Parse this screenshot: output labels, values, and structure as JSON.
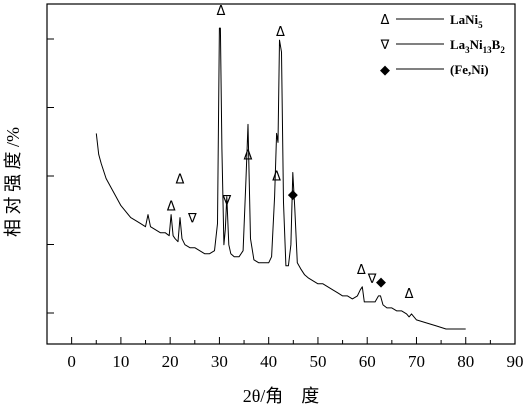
{
  "chart_data": {
    "type": "line",
    "xlabel": "2θ/角　度",
    "ylabel": "相 对 强 度 /%",
    "xlim": [
      -5,
      90
    ],
    "x_ticks": [
      0,
      10,
      20,
      30,
      40,
      50,
      60,
      70,
      80,
      90
    ],
    "y_ticks_labeled": false,
    "y_tick_count": 7,
    "grid": false,
    "legend_position": "top-right",
    "legend": [
      {
        "symbol": "Δ",
        "label": "LaNi",
        "sub": "5",
        "phase": "LaNi5"
      },
      {
        "symbol": "∇",
        "label": "La",
        "sub1": "3",
        "mid1": "Ni",
        "sub2": "13",
        "mid2": "B",
        "sub3": "2",
        "phase": "La3Ni13B2"
      },
      {
        "symbol": "◆",
        "label": "(Fe,Ni)",
        "phase": "(Fe,Ni)"
      }
    ],
    "series": [
      {
        "x": [
          5,
          5.5,
          6,
          7,
          8,
          9,
          10,
          11,
          12,
          13,
          14,
          15,
          15.5,
          16,
          17,
          18,
          19,
          19.8,
          20.2,
          20.6,
          21,
          21.6,
          22,
          22.4,
          23,
          24,
          25,
          26,
          27,
          28,
          29,
          29.6,
          30,
          30.2,
          30.5,
          30.9,
          31.2,
          31.5,
          31.9,
          32.3,
          33,
          34,
          34.8,
          35.4,
          35.8,
          36.3,
          37,
          38,
          39,
          40,
          40.6,
          41.2,
          41.6,
          41.9,
          42.2,
          42.6,
          43,
          43.5,
          44,
          44.5,
          44.9,
          45.3,
          45.8,
          46.5,
          47.3,
          48,
          49,
          50,
          51,
          52,
          53,
          54,
          55,
          56,
          57,
          58,
          58.6,
          59,
          59.4,
          60,
          60.6,
          61,
          61.6,
          62.3,
          62.7,
          63.2,
          64,
          65,
          66,
          67,
          68,
          68.5,
          69,
          70,
          72,
          74,
          76,
          78,
          80
        ],
        "y": [
          65,
          58,
          55,
          50,
          47,
          44,
          41,
          39,
          37,
          36,
          35,
          34,
          38,
          34,
          33,
          32,
          32,
          31,
          38,
          31,
          30,
          29,
          37,
          30,
          28,
          27,
          27,
          26,
          25,
          25,
          26,
          35,
          100,
          100,
          60,
          28,
          33,
          44,
          28,
          25,
          24,
          24,
          26,
          50,
          68,
          30,
          23,
          22,
          22,
          22,
          24,
          44,
          65,
          62,
          96,
          92,
          42,
          21,
          21,
          28,
          52,
          40,
          22,
          20,
          18,
          17,
          16,
          15,
          15,
          14,
          13,
          12,
          11,
          11,
          10,
          11,
          13,
          14,
          9,
          9,
          9,
          9,
          9,
          11,
          11,
          8,
          7,
          7,
          6,
          6,
          5,
          4,
          5,
          3,
          2,
          1,
          0,
          0,
          0
        ]
      }
    ],
    "markers": [
      {
        "x": 20.2,
        "y": 38,
        "symbol": "Δ",
        "phase": "LaNi5"
      },
      {
        "x": 22,
        "y": 47,
        "symbol": "Δ",
        "phase": "LaNi5"
      },
      {
        "x": 24.5,
        "y": 34,
        "symbol": "∇",
        "phase": "La3Ni13B2"
      },
      {
        "x": 30.3,
        "y": 103,
        "symbol": "Δ",
        "phase": "LaNi5"
      },
      {
        "x": 31.5,
        "y": 40,
        "symbol": "∇",
        "phase": "La3Ni13B2"
      },
      {
        "x": 35.8,
        "y": 55,
        "symbol": "Δ",
        "phase": "LaNi5"
      },
      {
        "x": 41.6,
        "y": 48,
        "symbol": "Δ",
        "phase": "LaNi5"
      },
      {
        "x": 42.4,
        "y": 96,
        "symbol": "Δ",
        "phase": "LaNi5"
      },
      {
        "x": 44.9,
        "y": 42,
        "symbol": "◆",
        "phase": "(Fe,Ni)"
      },
      {
        "x": 58.8,
        "y": 17,
        "symbol": "Δ",
        "phase": "LaNi5"
      },
      {
        "x": 61,
        "y": 14,
        "symbol": "∇",
        "phase": "La3Ni13B2"
      },
      {
        "x": 62.8,
        "y": 13,
        "symbol": "◆",
        "phase": "(Fe,Ni)"
      },
      {
        "x": 68.5,
        "y": 9,
        "symbol": "Δ",
        "phase": "LaNi5"
      }
    ]
  }
}
